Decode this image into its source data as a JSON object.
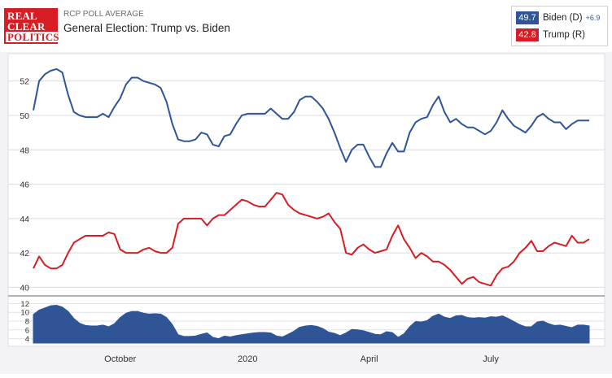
{
  "header": {
    "logo": "REAL CLEAR POLITICS",
    "label": "RCP POLL AVERAGE",
    "title": "General Election: Trump vs. Biden"
  },
  "legend": {
    "biden": {
      "value": "49.7",
      "name": "Biden (D)",
      "spread": "+6.9",
      "color": "#2f5597"
    },
    "trump": {
      "value": "42.8",
      "name": "Trump (R)",
      "color": "#d71d23"
    }
  },
  "chart_data": {
    "type": "line",
    "title": "General Election: Trump vs. Biden",
    "x_tick_labels": [
      "October",
      "2020",
      "April",
      "July"
    ],
    "x_tick_positions": [
      15,
      37,
      58,
      79
    ],
    "y_ticks": [
      40,
      42,
      44,
      46,
      48,
      50,
      52
    ],
    "ylim": [
      39.5,
      53.5
    ],
    "grid": true,
    "x": [
      0,
      1,
      2,
      3,
      4,
      5,
      6,
      7,
      8,
      9,
      10,
      11,
      12,
      13,
      14,
      15,
      16,
      17,
      18,
      19,
      20,
      21,
      22,
      23,
      24,
      25,
      26,
      27,
      28,
      29,
      30,
      31,
      32,
      33,
      34,
      35,
      36,
      37,
      38,
      39,
      40,
      41,
      42,
      43,
      44,
      45,
      46,
      47,
      48,
      49,
      50,
      51,
      52,
      53,
      54,
      55,
      56,
      57,
      58,
      59,
      60,
      61,
      62,
      63,
      64,
      65,
      66,
      67,
      68,
      69,
      70,
      71,
      72,
      73,
      74,
      75,
      76,
      77,
      78,
      79,
      80,
      81,
      82,
      83,
      84,
      85,
      86,
      87,
      88,
      89,
      90,
      91,
      92,
      93,
      94,
      95,
      96
    ],
    "series": [
      {
        "name": "Biden (D)",
        "color": "#2f5597",
        "values": [
          50.3,
          52.0,
          52.4,
          52.6,
          52.7,
          52.5,
          51.2,
          50.2,
          50.0,
          49.9,
          49.9,
          49.9,
          50.1,
          49.9,
          50.5,
          51.0,
          51.8,
          52.2,
          52.2,
          52.0,
          51.9,
          51.8,
          51.6,
          50.8,
          49.5,
          48.6,
          48.5,
          48.5,
          48.6,
          49.0,
          48.9,
          48.3,
          48.2,
          48.8,
          48.9,
          49.5,
          50.0,
          50.1,
          50.1,
          50.1,
          50.1,
          50.4,
          50.1,
          49.8,
          49.8,
          50.2,
          50.9,
          51.1,
          51.1,
          50.8,
          50.4,
          49.8,
          49.0,
          48.1,
          47.3,
          48.0,
          48.3,
          48.3,
          47.6,
          47.0,
          47.0,
          47.8,
          48.4,
          47.9,
          47.9,
          49.0,
          49.6,
          49.8,
          49.9,
          50.6,
          51.1,
          50.2,
          49.6,
          49.8,
          49.5,
          49.3,
          49.3,
          49.1,
          48.9,
          49.1,
          49.6,
          50.3,
          49.8,
          49.4,
          49.2,
          49.0,
          49.4,
          49.9,
          50.1,
          49.8,
          49.6,
          49.6,
          49.2,
          49.5,
          49.7,
          49.7,
          49.7
        ]
      },
      {
        "name": "Trump (R)",
        "color": "#d71d23",
        "values": [
          41.1,
          41.8,
          41.3,
          41.1,
          41.1,
          41.3,
          42.0,
          42.6,
          42.8,
          43.0,
          43.0,
          43.0,
          43.0,
          43.2,
          43.1,
          42.2,
          42.0,
          42.0,
          42.0,
          42.2,
          42.3,
          42.1,
          42.0,
          42.0,
          42.3,
          43.7,
          44.0,
          44.0,
          44.0,
          44.0,
          43.6,
          44.0,
          44.2,
          44.2,
          44.5,
          44.8,
          45.1,
          45.0,
          44.8,
          44.7,
          44.7,
          45.1,
          45.5,
          45.4,
          44.8,
          44.5,
          44.3,
          44.2,
          44.1,
          44.0,
          44.1,
          44.3,
          43.8,
          43.4,
          42.0,
          41.9,
          42.3,
          42.5,
          42.2,
          42.0,
          42.1,
          42.2,
          43.0,
          43.6,
          42.8,
          42.3,
          41.7,
          42.0,
          41.8,
          41.5,
          41.5,
          41.3,
          41.0,
          40.6,
          40.2,
          40.5,
          40.6,
          40.3,
          40.2,
          40.1,
          40.7,
          41.1,
          41.2,
          41.5,
          42.0,
          42.3,
          42.7,
          42.1,
          42.1,
          42.4,
          42.6,
          42.5,
          42.4,
          43.0,
          42.6,
          42.6,
          42.8
        ]
      }
    ],
    "spread": {
      "yticks": [
        4,
        6,
        8,
        10,
        12
      ],
      "ylim": [
        3,
        13
      ],
      "values": [
        9.5,
        10.5,
        11.0,
        11.5,
        11.6,
        11.2,
        10.2,
        8.6,
        7.5,
        7.0,
        6.9,
        6.9,
        7.1,
        6.7,
        7.4,
        8.8,
        9.8,
        10.2,
        10.2,
        9.8,
        9.6,
        9.7,
        9.6,
        8.8,
        7.2,
        4.9,
        4.5,
        4.5,
        4.6,
        5.0,
        5.3,
        4.3,
        4.0,
        4.6,
        4.4,
        4.7,
        4.9,
        5.1,
        5.3,
        5.4,
        5.4,
        5.3,
        4.6,
        4.4,
        5.0,
        5.7,
        6.6,
        6.9,
        7.0,
        6.8,
        6.3,
        5.5,
        5.2,
        4.7,
        5.3,
        6.1,
        6.0,
        5.8,
        5.4,
        5.0,
        4.9,
        5.6,
        5.4,
        4.3,
        5.1,
        6.7,
        7.9,
        7.8,
        8.1,
        9.1,
        9.6,
        8.9,
        8.6,
        9.2,
        9.3,
        8.8,
        8.7,
        8.8,
        8.7,
        9.0,
        8.9,
        9.2,
        8.6,
        7.9,
        7.2,
        6.7,
        6.7,
        7.8,
        8.0,
        7.4,
        7.0,
        7.1,
        6.8,
        6.5,
        7.1,
        7.1,
        6.9
      ]
    }
  }
}
